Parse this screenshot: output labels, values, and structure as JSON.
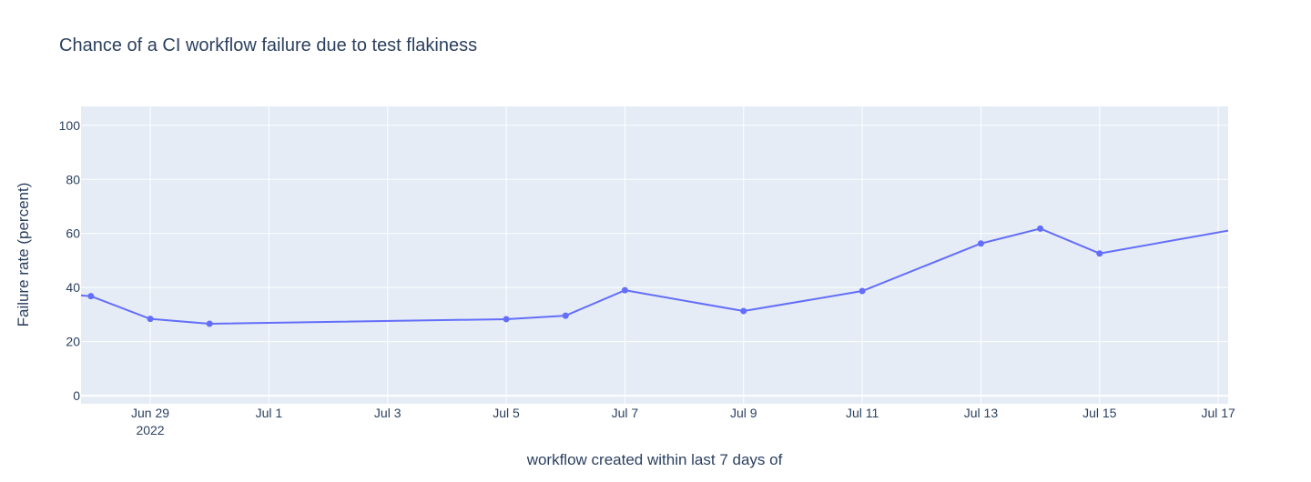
{
  "chart_data": {
    "type": "line",
    "title": "Chance of a CI workflow failure due to test flakiness",
    "xlabel": "workflow created within last 7 days of",
    "ylabel": "Failure rate (percent)",
    "x_range": [
      "2022-06-27T20:00",
      "2022-07-17T04:00"
    ],
    "ylim": [
      -3,
      107
    ],
    "y_ticks": [
      0,
      20,
      40,
      60,
      80,
      100
    ],
    "x_ticks": [
      {
        "date": "2022-06-29",
        "label": "Jun 29",
        "sublabel": "2022"
      },
      {
        "date": "2022-07-01",
        "label": "Jul 1"
      },
      {
        "date": "2022-07-03",
        "label": "Jul 3"
      },
      {
        "date": "2022-07-05",
        "label": "Jul 5"
      },
      {
        "date": "2022-07-07",
        "label": "Jul 7"
      },
      {
        "date": "2022-07-09",
        "label": "Jul 9"
      },
      {
        "date": "2022-07-11",
        "label": "Jul 11"
      },
      {
        "date": "2022-07-13",
        "label": "Jul 13"
      },
      {
        "date": "2022-07-15",
        "label": "Jul 15"
      },
      {
        "date": "2022-07-17",
        "label": "Jul 17"
      }
    ],
    "grid": true,
    "colors": {
      "plot_bg": "#e5ecf6",
      "grid": "#ffffff",
      "line": "#636efa"
    },
    "series": [
      {
        "x": [
          "2022-06-27",
          "2022-06-28",
          "2022-06-29",
          "2022-06-30",
          "2022-07-05",
          "2022-07-06",
          "2022-07-07",
          "2022-07-09",
          "2022-07-11",
          "2022-07-13",
          "2022-07-14",
          "2022-07-15",
          "2022-07-18"
        ],
        "y": [
          38.5,
          36.8,
          28.4,
          26.6,
          28.3,
          29.6,
          39.0,
          31.3,
          38.7,
          56.3,
          61.8,
          52.6,
          64.3
        ],
        "marker_visible": [
          false,
          true,
          true,
          true,
          true,
          true,
          true,
          true,
          true,
          true,
          true,
          true,
          false
        ]
      }
    ]
  }
}
